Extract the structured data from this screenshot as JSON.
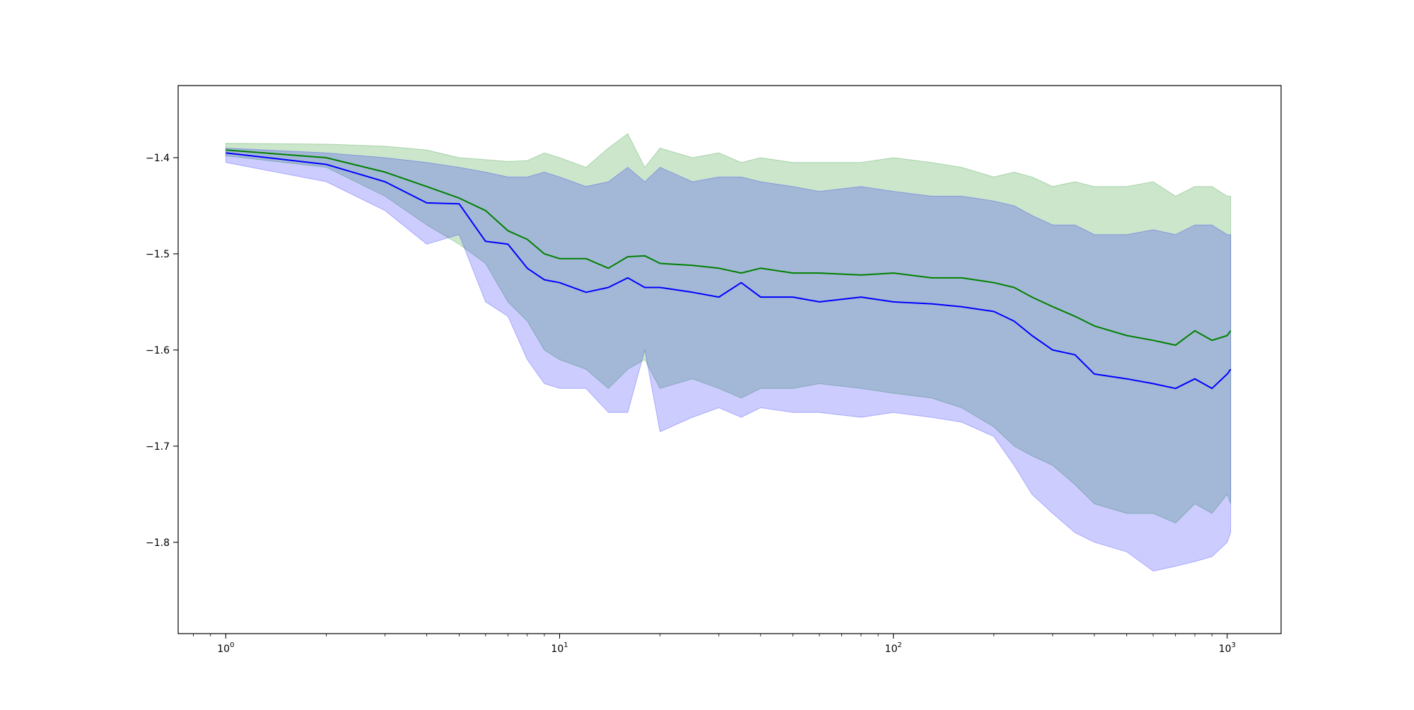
{
  "chart_data": {
    "type": "line",
    "title": "",
    "xlabel": "",
    "ylabel": "",
    "x_scale": "log",
    "xlim": [
      0.72,
      1450
    ],
    "ylim": [
      -1.895,
      -1.325
    ],
    "grid": false,
    "legend": "none",
    "x_ticks": [
      {
        "value": 1,
        "base": "10",
        "exp": "0"
      },
      {
        "value": 10,
        "base": "10",
        "exp": "1"
      },
      {
        "value": 100,
        "base": "10",
        "exp": "2"
      },
      {
        "value": 1000,
        "base": "10",
        "exp": "3"
      }
    ],
    "y_ticks": [
      {
        "value": -1.4,
        "label": "−1.4"
      },
      {
        "value": -1.5,
        "label": "−1.5"
      },
      {
        "value": -1.6,
        "label": "−1.6"
      },
      {
        "value": -1.7,
        "label": "−1.7"
      },
      {
        "value": -1.8,
        "label": "−1.8"
      }
    ],
    "x": [
      1,
      2,
      3,
      4,
      5,
      6,
      7,
      8,
      9,
      10,
      12,
      14,
      16,
      18,
      20,
      25,
      30,
      35,
      40,
      50,
      60,
      80,
      100,
      130,
      160,
      200,
      230,
      260,
      300,
      350,
      400,
      500,
      600,
      700,
      800,
      900,
      1000,
      1024
    ],
    "series": [
      {
        "color": "#008000",
        "band_color": "#008000",
        "band_opacity": 0.2,
        "mean": [
          -1.392,
          -1.4,
          -1.415,
          -1.43,
          -1.442,
          -1.455,
          -1.476,
          -1.485,
          -1.5,
          -1.505,
          -1.505,
          -1.515,
          -1.503,
          -1.502,
          -1.51,
          -1.512,
          -1.515,
          -1.52,
          -1.515,
          -1.52,
          -1.52,
          -1.522,
          -1.52,
          -1.525,
          -1.525,
          -1.53,
          -1.535,
          -1.545,
          -1.555,
          -1.565,
          -1.575,
          -1.585,
          -1.59,
          -1.595,
          -1.58,
          -1.59,
          -1.585,
          -1.58
        ],
        "upper": [
          -1.385,
          -1.386,
          -1.388,
          -1.392,
          -1.4,
          -1.402,
          -1.404,
          -1.403,
          -1.395,
          -1.4,
          -1.41,
          -1.39,
          -1.375,
          -1.41,
          -1.39,
          -1.4,
          -1.395,
          -1.405,
          -1.4,
          -1.405,
          -1.405,
          -1.405,
          -1.4,
          -1.405,
          -1.41,
          -1.42,
          -1.415,
          -1.42,
          -1.43,
          -1.425,
          -1.43,
          -1.43,
          -1.425,
          -1.44,
          -1.43,
          -1.43,
          -1.44,
          -1.44
        ],
        "lower": [
          -1.398,
          -1.41,
          -1.44,
          -1.47,
          -1.49,
          -1.51,
          -1.55,
          -1.57,
          -1.6,
          -1.61,
          -1.62,
          -1.64,
          -1.62,
          -1.61,
          -1.64,
          -1.63,
          -1.64,
          -1.65,
          -1.64,
          -1.64,
          -1.635,
          -1.64,
          -1.645,
          -1.65,
          -1.66,
          -1.68,
          -1.7,
          -1.71,
          -1.72,
          -1.74,
          -1.76,
          -1.77,
          -1.77,
          -1.78,
          -1.76,
          -1.77,
          -1.75,
          -1.76
        ]
      },
      {
        "color": "#0000ff",
        "band_color": "#0000ff",
        "band_opacity": 0.2,
        "mean": [
          -1.395,
          -1.407,
          -1.425,
          -1.447,
          -1.448,
          -1.487,
          -1.49,
          -1.515,
          -1.527,
          -1.53,
          -1.54,
          -1.535,
          -1.525,
          -1.535,
          -1.535,
          -1.54,
          -1.545,
          -1.53,
          -1.545,
          -1.545,
          -1.55,
          -1.545,
          -1.55,
          -1.552,
          -1.555,
          -1.56,
          -1.57,
          -1.585,
          -1.6,
          -1.605,
          -1.625,
          -1.63,
          -1.635,
          -1.64,
          -1.63,
          -1.64,
          -1.625,
          -1.62
        ],
        "upper": [
          -1.39,
          -1.395,
          -1.4,
          -1.405,
          -1.41,
          -1.415,
          -1.42,
          -1.42,
          -1.415,
          -1.42,
          -1.43,
          -1.425,
          -1.41,
          -1.425,
          -1.41,
          -1.425,
          -1.42,
          -1.42,
          -1.425,
          -1.43,
          -1.435,
          -1.43,
          -1.435,
          -1.44,
          -1.44,
          -1.445,
          -1.45,
          -1.46,
          -1.47,
          -1.47,
          -1.48,
          -1.48,
          -1.475,
          -1.48,
          -1.47,
          -1.47,
          -1.48,
          -1.48
        ],
        "lower": [
          -1.405,
          -1.425,
          -1.455,
          -1.49,
          -1.48,
          -1.55,
          -1.565,
          -1.61,
          -1.635,
          -1.64,
          -1.64,
          -1.665,
          -1.665,
          -1.6,
          -1.685,
          -1.67,
          -1.66,
          -1.67,
          -1.66,
          -1.665,
          -1.665,
          -1.67,
          -1.665,
          -1.67,
          -1.675,
          -1.69,
          -1.72,
          -1.75,
          -1.77,
          -1.79,
          -1.8,
          -1.81,
          -1.83,
          -1.825,
          -1.82,
          -1.815,
          -1.8,
          -1.79
        ]
      }
    ]
  }
}
